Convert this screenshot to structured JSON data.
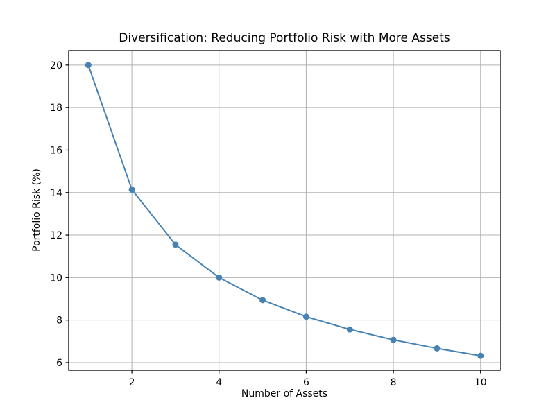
{
  "figure": {
    "background": "#ffffff"
  },
  "chart_data": {
    "type": "line",
    "title": "Diversification: Reducing Portfolio Risk with More Assets",
    "xlabel": "Number of Assets",
    "ylabel": "Portfolio Risk (%)",
    "x": [
      1,
      2,
      3,
      4,
      5,
      6,
      7,
      8,
      9,
      10
    ],
    "y": [
      20.0,
      14.14,
      11.55,
      10.0,
      8.94,
      8.16,
      7.56,
      7.07,
      6.67,
      6.32
    ],
    "xlim": [
      0.55,
      10.45
    ],
    "ylim": [
      5.64,
      20.68
    ],
    "xticks": [
      2,
      4,
      6,
      8,
      10
    ],
    "yticks": [
      6,
      8,
      10,
      12,
      14,
      16,
      18,
      20
    ],
    "grid": true,
    "legend": "none",
    "line_color": "#4682B4",
    "marker_color": "#4682B4",
    "marker": "o",
    "grid_color": "#b2b2b2",
    "axis_color": "#000000"
  }
}
